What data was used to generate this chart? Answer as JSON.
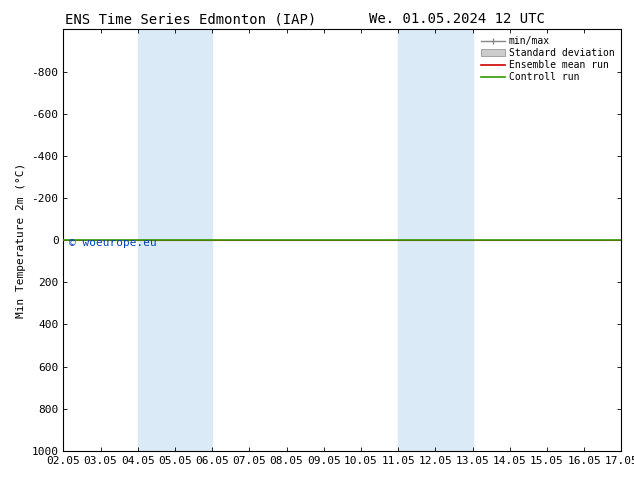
{
  "title_left": "ENS Time Series Edmonton (IAP)",
  "title_right": "We. 01.05.2024 12 UTC",
  "ylabel": "Min Temperature 2m (°C)",
  "ylim_bottom": 1000,
  "ylim_top": -1000,
  "yticks": [
    -800,
    -600,
    -400,
    -200,
    0,
    200,
    400,
    600,
    800,
    1000
  ],
  "xtick_labels": [
    "02.05",
    "03.05",
    "04.05",
    "05.05",
    "06.05",
    "07.05",
    "08.05",
    "09.05",
    "10.05",
    "11.05",
    "12.05",
    "13.05",
    "14.05",
    "15.05",
    "16.05",
    "17.05"
  ],
  "xtick_positions": [
    0,
    1,
    2,
    3,
    4,
    5,
    6,
    7,
    8,
    9,
    10,
    11,
    12,
    13,
    14,
    15
  ],
  "blue_band_1": [
    2,
    4
  ],
  "blue_band_2": [
    9,
    11
  ],
  "blue_band_color": "#daeaf7",
  "control_run_y": 0,
  "control_run_color": "#339900",
  "ensemble_mean_color": "#cc0000",
  "watermark_text": "© woeurope.eu",
  "watermark_color": "#0044bb",
  "legend_items": [
    "min/max",
    "Standard deviation",
    "Ensemble mean run",
    "Controll run"
  ],
  "background_color": "#ffffff",
  "plot_background": "#ffffff",
  "title_fontsize": 10,
  "axis_fontsize": 8,
  "tick_fontsize": 8
}
